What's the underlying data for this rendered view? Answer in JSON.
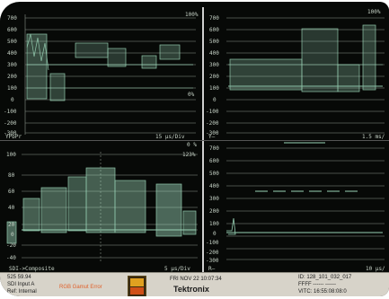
{
  "panels": {
    "top_left": {
      "y_ticks": [
        "700",
        "600",
        "500",
        "400",
        "300",
        "200",
        "100",
        "0",
        "-100",
        "-200",
        "-300"
      ],
      "top_right_label": "100%",
      "bottom_right_label": "0%",
      "mode_label": "YPbPr",
      "sweep_label": "15 µs/Div"
    },
    "top_right": {
      "y_ticks": [
        "700",
        "600",
        "500",
        "400",
        "300",
        "200",
        "100",
        "0",
        "-100",
        "-200",
        "-300"
      ],
      "top_right_label": "100%",
      "mode_label": "Y—",
      "sweep_label": "1.5 ms/"
    },
    "bottom_left": {
      "y_ticks": [
        "100",
        "80",
        "60",
        "40",
        "20",
        "0",
        "-20",
        "-40"
      ],
      "top_right_label": "0 %",
      "right_label": "123%",
      "mode_label": "SDI->Composite",
      "sweep_label": "5 µs/Div"
    },
    "bottom_right": {
      "y_ticks": [
        "700",
        "600",
        "500",
        "400",
        "300",
        "200",
        "100",
        "0",
        "-100",
        "-200",
        "-300"
      ],
      "mode_label": "R—",
      "sweep_label": "10 µs/"
    }
  },
  "status_bar": {
    "line1": "525 59.94",
    "line2": "SDI Input A",
    "line3": "Ref: Internal",
    "alarm_text": "RGB Gamut Error",
    "date": "FRI NOV 22 10:07:34",
    "brand": "Tektronix",
    "id_line": "ID: 128_101_032_017",
    "ffff_line": "FFFF ------ ------",
    "vitc_line": "VITC: 16:55:08:08:0"
  },
  "colors": {
    "trace": "#a8e8c8",
    "graticule": "#8a948a",
    "screen_bg": "#060806",
    "status_bg": "#d7d3c9",
    "alarm": "#e0602a"
  }
}
